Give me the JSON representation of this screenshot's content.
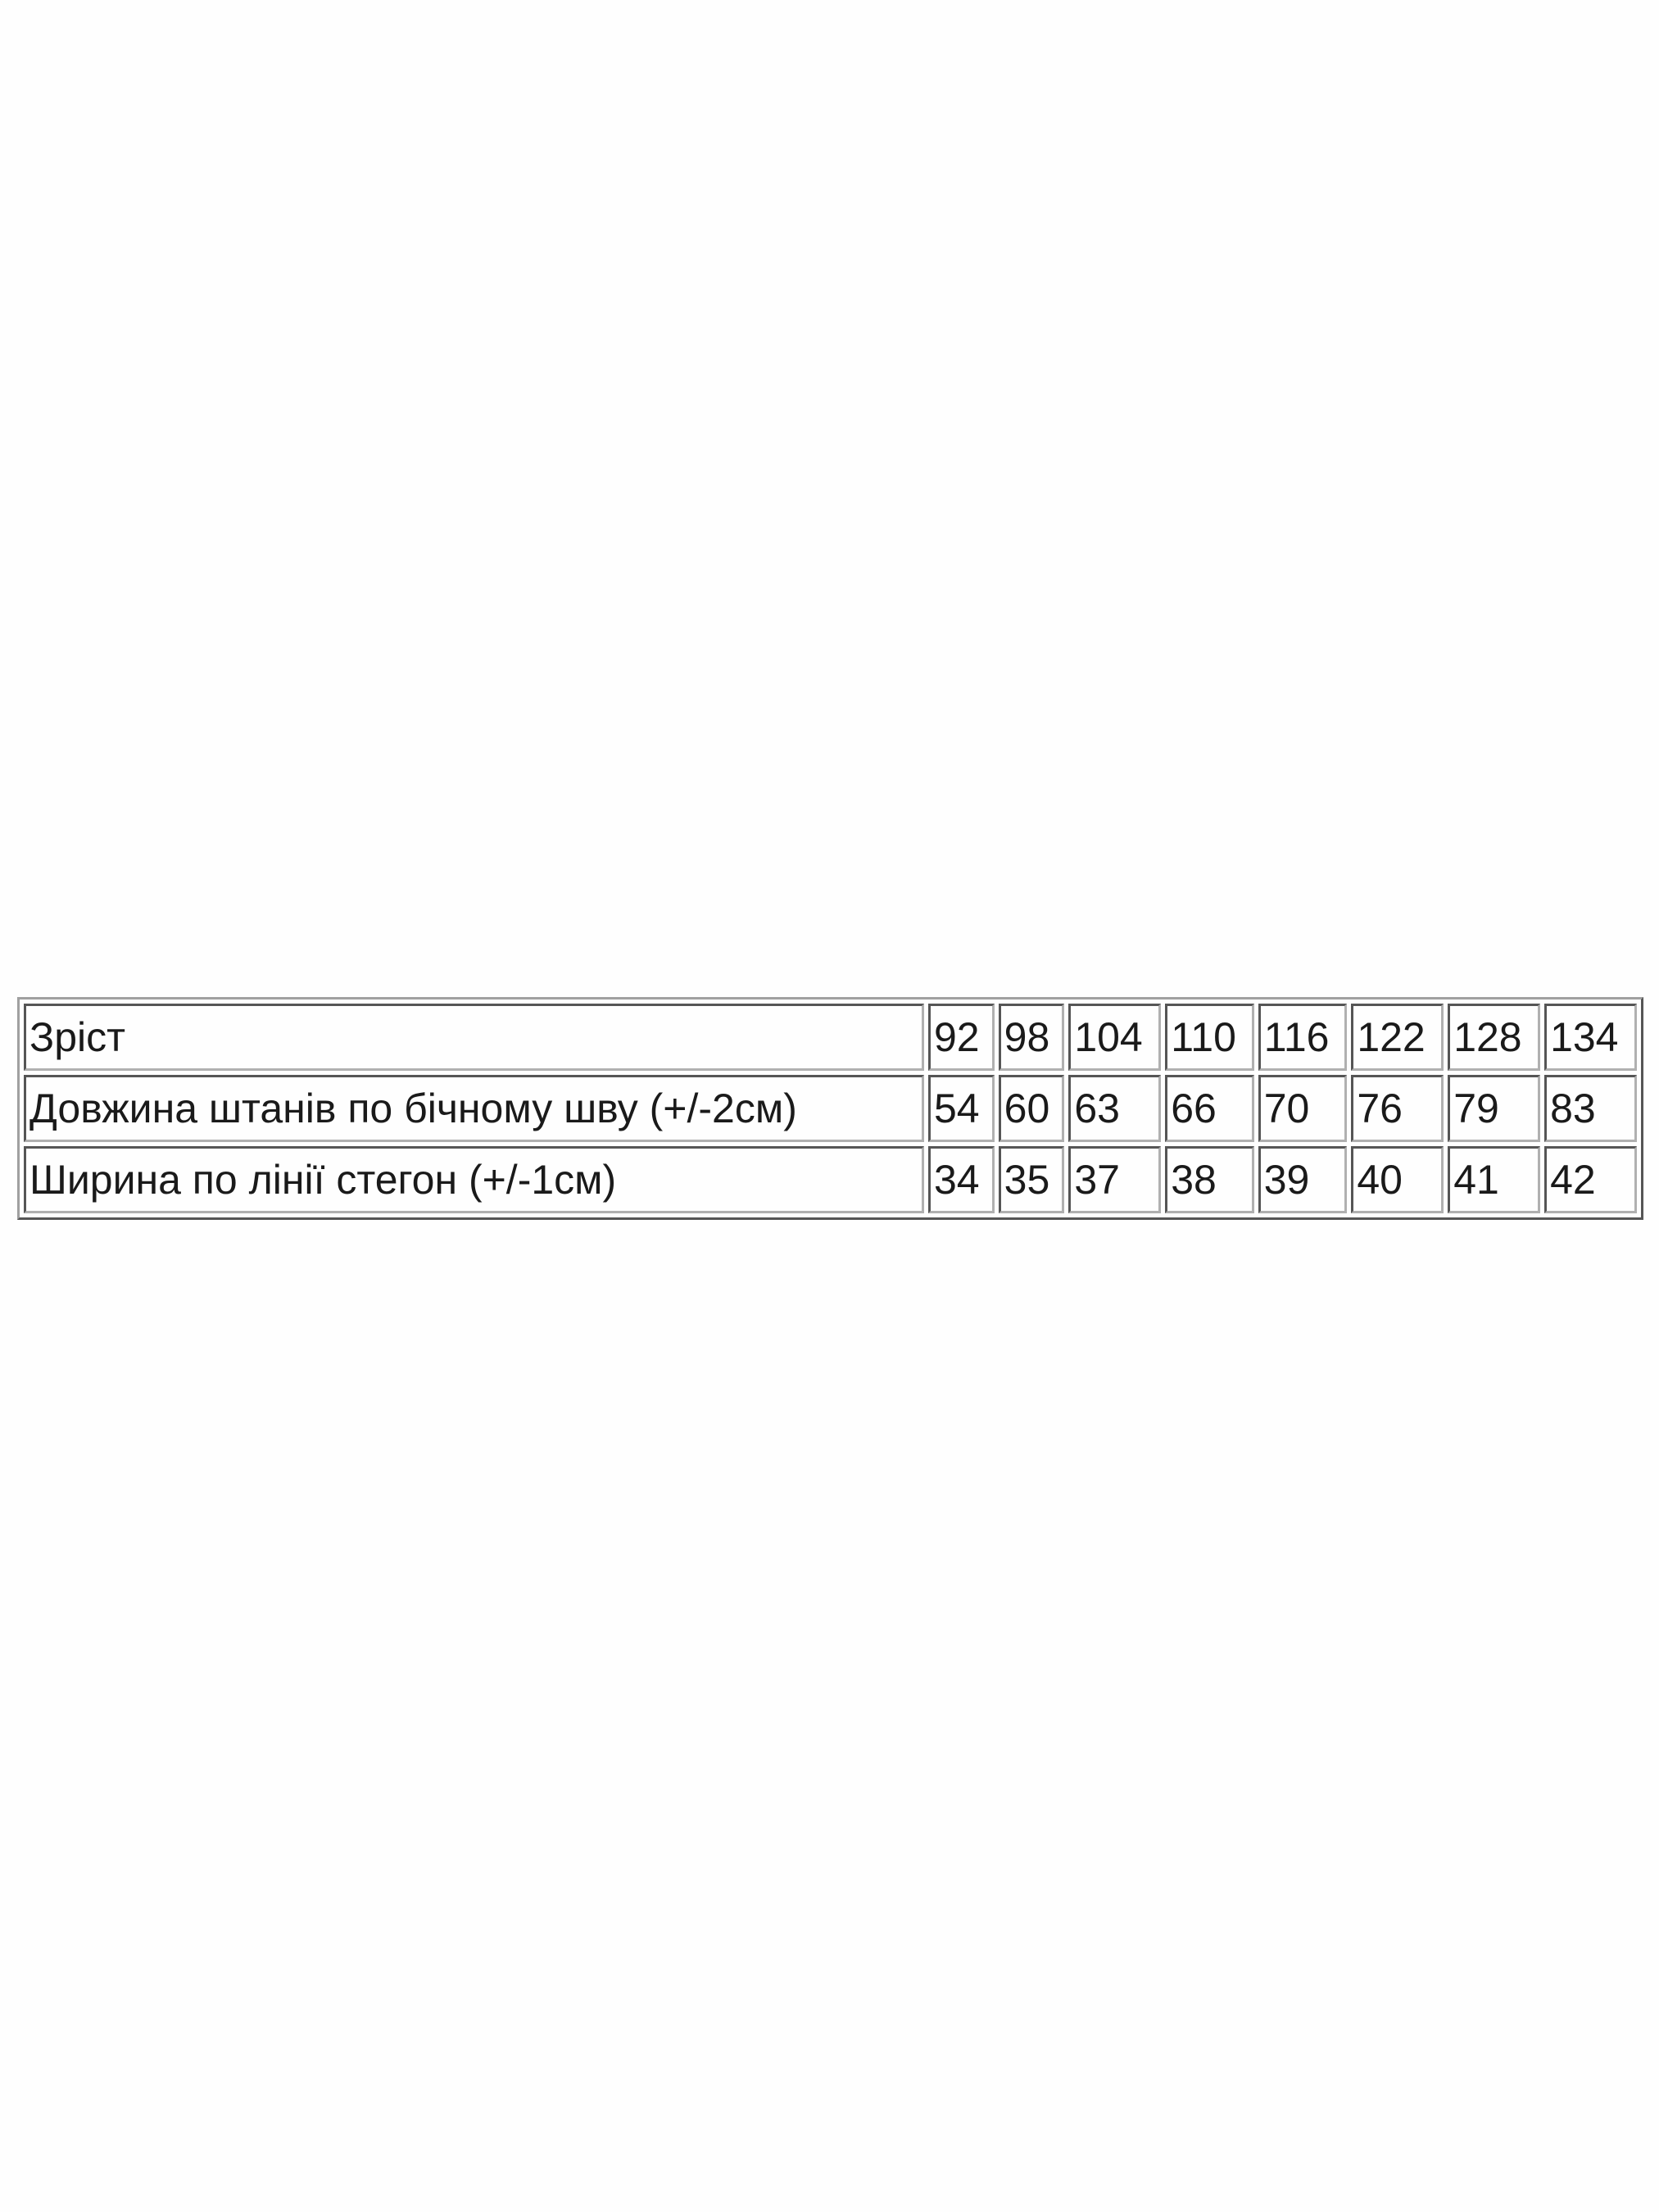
{
  "size_table": {
    "rows": [
      {
        "label": "Зріст",
        "values": [
          "92",
          "98",
          "104",
          "110",
          "116",
          "122",
          "128",
          "134"
        ]
      },
      {
        "label": "Довжина штанів по бічному шву (+/-2см)",
        "values": [
          "54",
          "60",
          "63",
          "66",
          "70",
          "76",
          "79",
          "83"
        ]
      },
      {
        "label": "Ширина по лінії стегон (+/-1см)",
        "values": [
          "34",
          "35",
          "37",
          "38",
          "39",
          "40",
          "41",
          "42"
        ]
      }
    ]
  }
}
